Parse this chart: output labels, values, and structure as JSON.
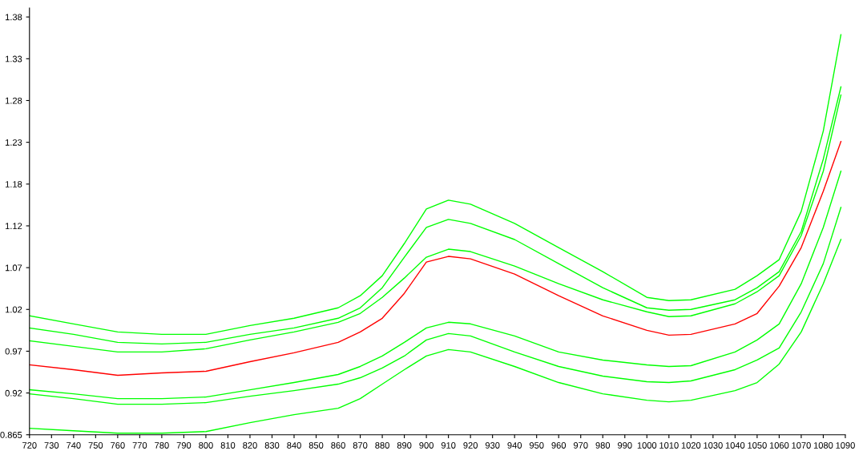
{
  "chart_data": {
    "type": "line",
    "x": [
      720,
      740,
      760,
      780,
      800,
      820,
      840,
      860,
      870,
      880,
      890,
      900,
      910,
      920,
      940,
      960,
      980,
      1000,
      1010,
      1020,
      1040,
      1050,
      1060,
      1070,
      1080,
      1088
    ],
    "series": [
      {
        "color": "#00ff00",
        "values": [
          1.013,
          1.003,
          0.993,
          0.99,
          0.99,
          1.001,
          1.01,
          1.023,
          1.038,
          1.063,
          1.103,
          1.146,
          1.157,
          1.152,
          1.128,
          1.098,
          1.068,
          1.036,
          1.032,
          1.033,
          1.046,
          1.063,
          1.083,
          1.143,
          1.243,
          1.363
        ]
      },
      {
        "color": "#00ff00",
        "values": [
          0.998,
          0.99,
          0.98,
          0.978,
          0.98,
          0.99,
          0.998,
          1.01,
          1.023,
          1.048,
          1.086,
          1.123,
          1.133,
          1.128,
          1.108,
          1.078,
          1.048,
          1.023,
          1.02,
          1.021,
          1.033,
          1.048,
          1.068,
          1.118,
          1.208,
          1.298
        ]
      },
      {
        "color": "#00ff00",
        "values": [
          0.982,
          0.975,
          0.968,
          0.968,
          0.972,
          0.983,
          0.993,
          1.005,
          1.016,
          1.036,
          1.06,
          1.086,
          1.096,
          1.093,
          1.075,
          1.053,
          1.033,
          1.018,
          1.012,
          1.013,
          1.028,
          1.043,
          1.063,
          1.113,
          1.193,
          1.288
        ]
      },
      {
        "color": "#00ff00",
        "values": [
          0.921,
          0.916,
          0.91,
          0.91,
          0.912,
          0.921,
          0.93,
          0.94,
          0.95,
          0.963,
          0.98,
          0.998,
          1.005,
          1.003,
          0.988,
          0.968,
          0.958,
          0.952,
          0.95,
          0.951,
          0.968,
          0.983,
          1.003,
          1.053,
          1.123,
          1.193
        ]
      },
      {
        "color": "#00ff00",
        "values": [
          0.916,
          0.91,
          0.903,
          0.903,
          0.905,
          0.913,
          0.92,
          0.928,
          0.936,
          0.948,
          0.963,
          0.983,
          0.991,
          0.988,
          0.968,
          0.95,
          0.938,
          0.931,
          0.93,
          0.932,
          0.946,
          0.958,
          0.973,
          1.018,
          1.078,
          1.148
        ]
      },
      {
        "color": "#00ff00",
        "values": [
          0.873,
          0.87,
          0.867,
          0.867,
          0.869,
          0.88,
          0.89,
          0.898,
          0.91,
          0.928,
          0.946,
          0.963,
          0.971,
          0.968,
          0.95,
          0.93,
          0.916,
          0.908,
          0.906,
          0.908,
          0.92,
          0.93,
          0.953,
          0.993,
          1.053,
          1.108
        ]
      },
      {
        "color": "#ff0000",
        "values": [
          0.952,
          0.946,
          0.939,
          0.942,
          0.944,
          0.956,
          0.967,
          0.98,
          0.993,
          1.01,
          1.041,
          1.08,
          1.087,
          1.084,
          1.065,
          1.038,
          1.013,
          0.995,
          0.989,
          0.99,
          1.003,
          1.016,
          1.05,
          1.098,
          1.168,
          1.23
        ]
      }
    ],
    "xlim": [
      720,
      1090
    ],
    "xticks": [
      720,
      730,
      740,
      750,
      760,
      770,
      780,
      790,
      800,
      810,
      820,
      830,
      840,
      850,
      860,
      870,
      880,
      890,
      900,
      910,
      920,
      930,
      940,
      950,
      960,
      970,
      980,
      990,
      1000,
      1010,
      1020,
      1030,
      1040,
      1050,
      1060,
      1070,
      1080,
      1090
    ],
    "ylim": [
      0.865,
      1.396
    ],
    "yticks": [
      0.865,
      {
        "value": 0.917,
        "label": "0.92"
      },
      {
        "value": 0.969,
        "label": "0.97"
      },
      {
        "value": 1.021,
        "label": "1.02"
      },
      {
        "value": 1.073,
        "label": "1.07"
      },
      {
        "value": 1.125,
        "label": "1.12"
      },
      {
        "value": 1.177,
        "label": "1.18"
      },
      {
        "value": 1.229,
        "label": "1.23"
      },
      {
        "value": 1.281,
        "label": "1.28"
      },
      {
        "value": 1.333,
        "label": "1.33"
      },
      {
        "value": 1.385,
        "label": "1.38"
      }
    ],
    "grid": false,
    "marker": "none",
    "line_style": "solid"
  }
}
